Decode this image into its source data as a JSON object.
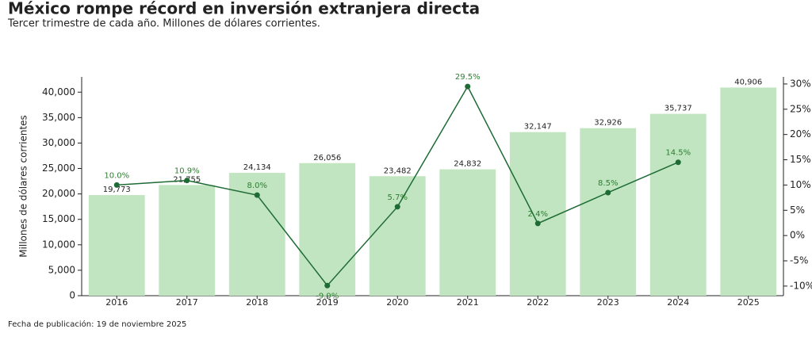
{
  "chart_data": {
    "type": "bar",
    "title": "México rompe récord en inversión extranjera directa",
    "subtitle": "Tercer trimestre de cada año. Millones de dólares corrientes.",
    "ylabel": "Millones de dólares corrientes",
    "footnote": "Fecha de publicación: 19 de noviembre 2025",
    "categories": [
      "2016",
      "2017",
      "2018",
      "2019",
      "2020",
      "2021",
      "2022",
      "2023",
      "2024",
      "2025"
    ],
    "series": [
      {
        "type": "bar",
        "color": "#c0e5c0",
        "values": [
          19773,
          21755,
          24134,
          26056,
          23482,
          24832,
          32147,
          32926,
          35737,
          40906
        ],
        "value_labels": [
          "19,773",
          "21,755",
          "24,134",
          "26,056",
          "23,482",
          "24,832",
          "32,147",
          "32,926",
          "35,737",
          "40,906"
        ]
      },
      {
        "type": "line",
        "axis": "y2",
        "color": "#1e6b35",
        "values": [
          10.0,
          10.9,
          8.0,
          -9.9,
          5.7,
          29.5,
          2.4,
          8.5,
          14.5,
          null
        ],
        "value_labels": [
          "10.0%",
          "10.9%",
          "8.0%",
          "-9.9%",
          "5.7%",
          "29.5%",
          "2.4%",
          "8.5%",
          "14.5%",
          null
        ]
      }
    ],
    "ylim": [
      0,
      43000
    ],
    "yticks": [
      0,
      {
        "value": 5000,
        "label": "5,000"
      },
      {
        "value": 10000,
        "label": "10,000"
      },
      {
        "value": 15000,
        "label": "15,000"
      },
      {
        "value": 20000,
        "label": "20,000"
      },
      {
        "value": 25000,
        "label": "25,000"
      },
      {
        "value": 30000,
        "label": "30,000"
      },
      {
        "value": 35000,
        "label": "35,000"
      },
      {
        "value": 40000,
        "label": "40,000"
      }
    ],
    "y2lim": [
      -11.9,
      31.4
    ],
    "y2ticks": [
      {
        "value": -10,
        "label": "-10%"
      },
      {
        "value": -5,
        "label": "-5%"
      },
      {
        "value": 0,
        "label": "0%"
      },
      {
        "value": 5,
        "label": "5%"
      },
      {
        "value": 10,
        "label": "10%"
      },
      {
        "value": 15,
        "label": "15%"
      },
      {
        "value": 20,
        "label": "20%"
      },
      {
        "value": 25,
        "label": "25%"
      },
      {
        "value": 30,
        "label": "30%"
      }
    ]
  }
}
